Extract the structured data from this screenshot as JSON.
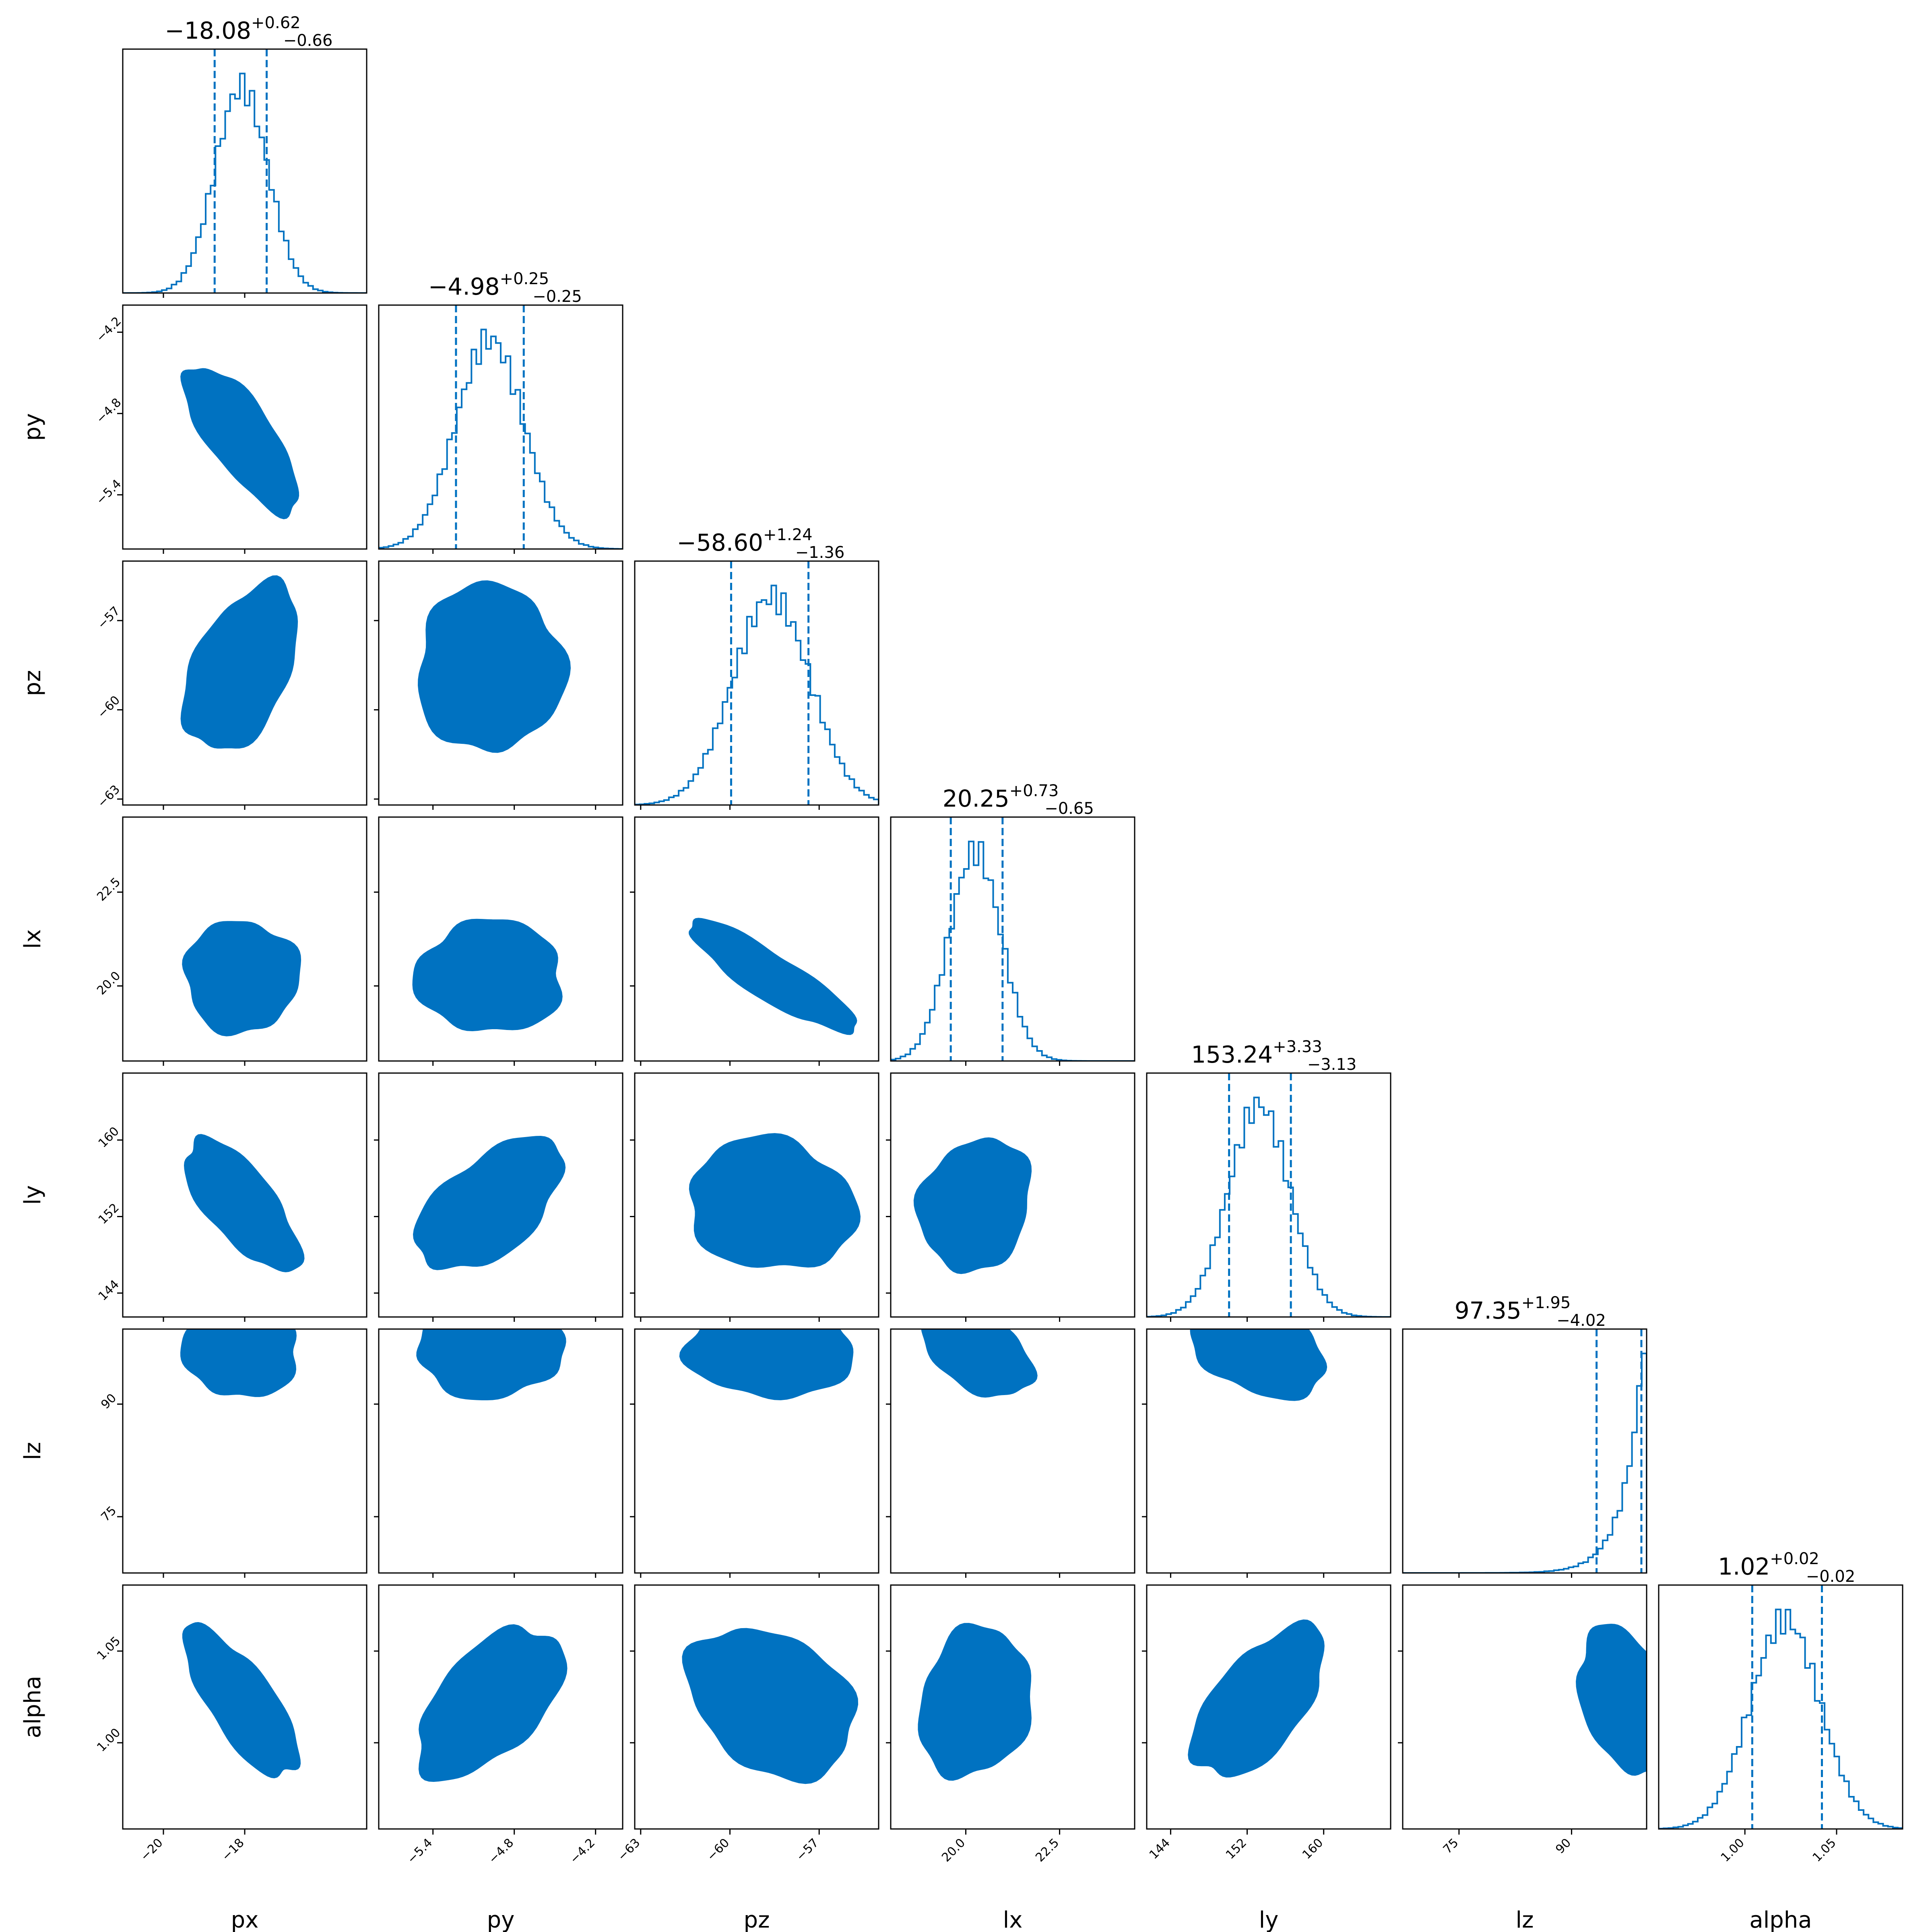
{
  "chart_data": {
    "type": "corner",
    "parameters": [
      "px",
      "py",
      "pz",
      "lx",
      "ly",
      "lz",
      "alpha"
    ],
    "colors": {
      "line": "#0072c1",
      "fill_outer": "#c3dbef",
      "fill_mid": "#7db3df",
      "fill_inner": "#0072c1"
    },
    "titles": [
      {
        "median": "−18.08",
        "plus": "+0.62",
        "minus": "−0.66"
      },
      {
        "median": "−4.98",
        "plus": "+0.25",
        "minus": "−0.25"
      },
      {
        "median": "−58.60",
        "plus": "+1.24",
        "minus": "−1.36"
      },
      {
        "median": "20.25",
        "plus": "+0.73",
        "minus": "−0.65"
      },
      {
        "median": "153.24",
        "plus": "+3.33",
        "minus": "−3.13"
      },
      {
        "median": "97.35",
        "plus": "+1.95",
        "minus": "−4.02"
      },
      {
        "median": "1.02",
        "plus": "+0.02",
        "minus": "−0.02"
      }
    ],
    "axes": [
      {
        "name": "px",
        "range": [
          -21.0,
          -15.0
        ],
        "ticks": [
          -20,
          -18
        ],
        "tick_labels": [
          "−20",
          "−18"
        ],
        "median": -18.08,
        "q_lo": -18.74,
        "q_hi": -17.46,
        "sd": 0.65
      },
      {
        "name": "py",
        "range": [
          -5.8,
          -4.0
        ],
        "ticks": [
          -5.4,
          -4.8,
          -4.2
        ],
        "tick_labels": [
          "−5.4",
          "−4.8",
          "−4.2"
        ],
        "median": -4.98,
        "q_lo": -5.23,
        "q_hi": -4.73,
        "sd": 0.25
      },
      {
        "name": "pz",
        "range": [
          -63.2,
          -55.0
        ],
        "ticks": [
          -63,
          -60,
          -57
        ],
        "tick_labels": [
          "−63",
          "−60",
          "−57"
        ],
        "median": -58.6,
        "q_lo": -59.96,
        "q_hi": -57.36,
        "sd": 1.3
      },
      {
        "name": "lx",
        "range": [
          18.0,
          24.5
        ],
        "ticks": [
          20.0,
          22.5
        ],
        "tick_labels": [
          "20.0",
          "22.5"
        ],
        "median": 20.25,
        "q_lo": 19.6,
        "q_hi": 20.98,
        "sd": 0.69
      },
      {
        "name": "ly",
        "range": [
          141.5,
          167.0
        ],
        "ticks": [
          144,
          152,
          160
        ],
        "tick_labels": [
          "144",
          "152",
          "160"
        ],
        "median": 153.24,
        "q_lo": 150.11,
        "q_hi": 156.57,
        "sd": 3.2
      },
      {
        "name": "lz",
        "range": [
          67.5,
          100.0
        ],
        "ticks": [
          75,
          90
        ],
        "tick_labels": [
          "75",
          "90"
        ],
        "median": 97.35,
        "q_lo": 93.33,
        "q_hi": 99.3,
        "sd": 3.0
      },
      {
        "name": "alpha",
        "range": [
          0.953,
          1.086
        ],
        "ticks": [
          1.0,
          1.05
        ],
        "tick_labels": [
          "1.00",
          "1.05"
        ],
        "median": 1.022,
        "q_lo": 1.004,
        "q_hi": 1.042,
        "sd": 0.019
      }
    ],
    "correlations": [
      [
        "px",
        "py",
        -0.75
      ],
      [
        "px",
        "pz",
        0.45
      ],
      [
        "px",
        "lx",
        0.0
      ],
      [
        "px",
        "ly",
        -0.7
      ],
      [
        "px",
        "lz",
        0.0
      ],
      [
        "px",
        "alpha",
        -0.75
      ],
      [
        "py",
        "pz",
        0.0
      ],
      [
        "py",
        "lx",
        0.0
      ],
      [
        "py",
        "ly",
        0.55
      ],
      [
        "py",
        "lz",
        0.0
      ],
      [
        "py",
        "alpha",
        0.55
      ],
      [
        "pz",
        "lx",
        -0.88
      ],
      [
        "pz",
        "ly",
        -0.1
      ],
      [
        "pz",
        "lz",
        0.0
      ],
      [
        "pz",
        "alpha",
        -0.3
      ],
      [
        "lx",
        "ly",
        0.15
      ],
      [
        "lx",
        "lz",
        -0.5
      ],
      [
        "lx",
        "alpha",
        0.15
      ],
      [
        "ly",
        "lz",
        -0.3
      ],
      [
        "ly",
        "alpha",
        0.6
      ],
      [
        "lz",
        "alpha",
        -0.4
      ]
    ],
    "contour_levels_sigma": [
      0.75,
      1.45,
      2.15
    ]
  }
}
